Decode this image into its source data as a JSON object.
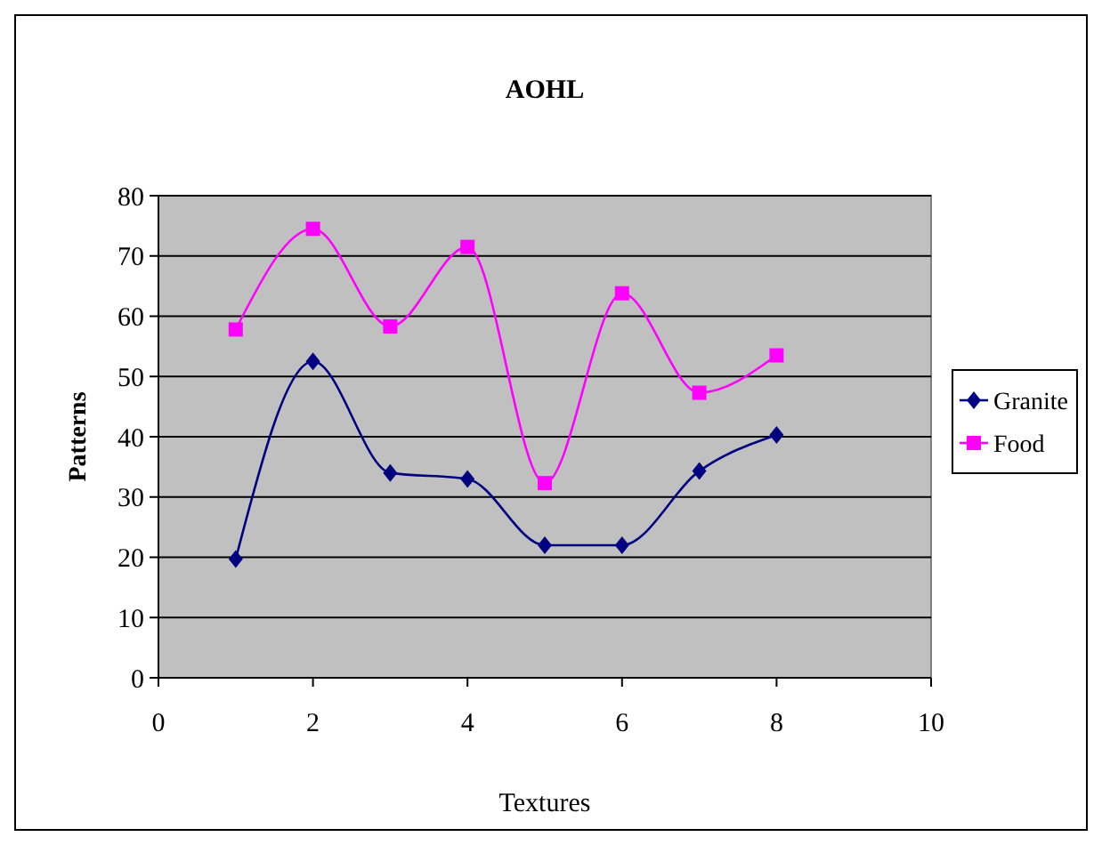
{
  "chart_data": {
    "type": "line",
    "title": "AOHL",
    "xlabel": "Textures",
    "ylabel": "Patterns",
    "x": [
      1,
      2,
      3,
      4,
      5,
      6,
      7,
      8
    ],
    "series": [
      {
        "name": "Granite",
        "color": "#000080",
        "marker": "diamond",
        "values": [
          19.7,
          52.5,
          34,
          33,
          22,
          22,
          34.3,
          40.3
        ]
      },
      {
        "name": "Food",
        "color": "#ff00ff",
        "marker": "square",
        "values": [
          57.8,
          74.5,
          58.3,
          71.5,
          32.3,
          63.8,
          47.3,
          53.5
        ]
      }
    ],
    "xlim": [
      0,
      10
    ],
    "xticks": [
      0,
      2,
      4,
      6,
      8,
      10
    ],
    "ylim": [
      0,
      80
    ],
    "yticks": [
      0,
      10,
      20,
      30,
      40,
      50,
      60,
      70,
      80
    ],
    "grid": "y",
    "legend": "right"
  }
}
